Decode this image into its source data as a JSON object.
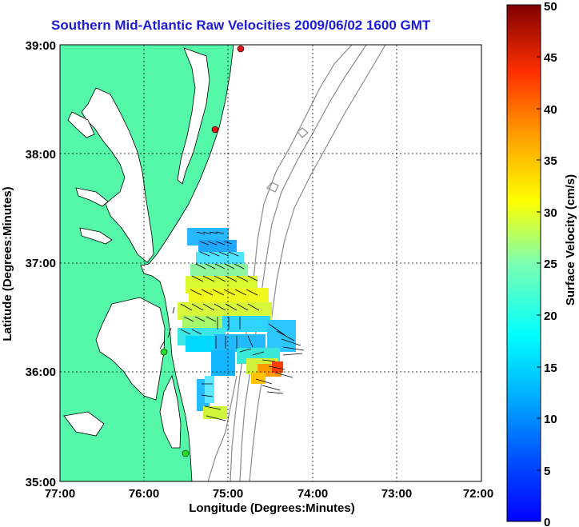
{
  "title": "Southern Mid-Atlantic Raw Velocities 2009/06/02 1600 GMT",
  "axes": {
    "xlabel": "Longitude (Degrees:Minutes)",
    "ylabel": "Latitude (Degrees:Minutes)",
    "x_ticks": [
      "77:00",
      "76:00",
      "75:00",
      "74:00",
      "73:00",
      "72:00"
    ],
    "y_ticks": [
      "35:00",
      "36:00",
      "37:00",
      "38:00",
      "39:00"
    ],
    "x_range": [
      -77,
      -72
    ],
    "y_range": [
      35,
      39
    ],
    "grid": "dotted"
  },
  "colorbar": {
    "label": "Surface Velocity (cm/s)",
    "ticks": [
      "0",
      "5",
      "10",
      "15",
      "20",
      "25",
      "30",
      "35",
      "40",
      "45",
      "50"
    ],
    "range": [
      0,
      50
    ],
    "colormap": "jet"
  },
  "colors": {
    "land": "#55f7a8",
    "title": "#1c1cd8",
    "bathymetry": "#8c8c8c",
    "station_active": "#22dd22",
    "station_inactive": "#dd1111"
  },
  "stations": [
    {
      "lon": -74.85,
      "lat": 38.99,
      "status": "red"
    },
    {
      "lon": -75.08,
      "lat": 38.22,
      "status": "red"
    },
    {
      "lon": -75.65,
      "lat": 36.19,
      "status": "green"
    },
    {
      "lon": -75.5,
      "lat": 35.25,
      "status": "green"
    }
  ]
}
